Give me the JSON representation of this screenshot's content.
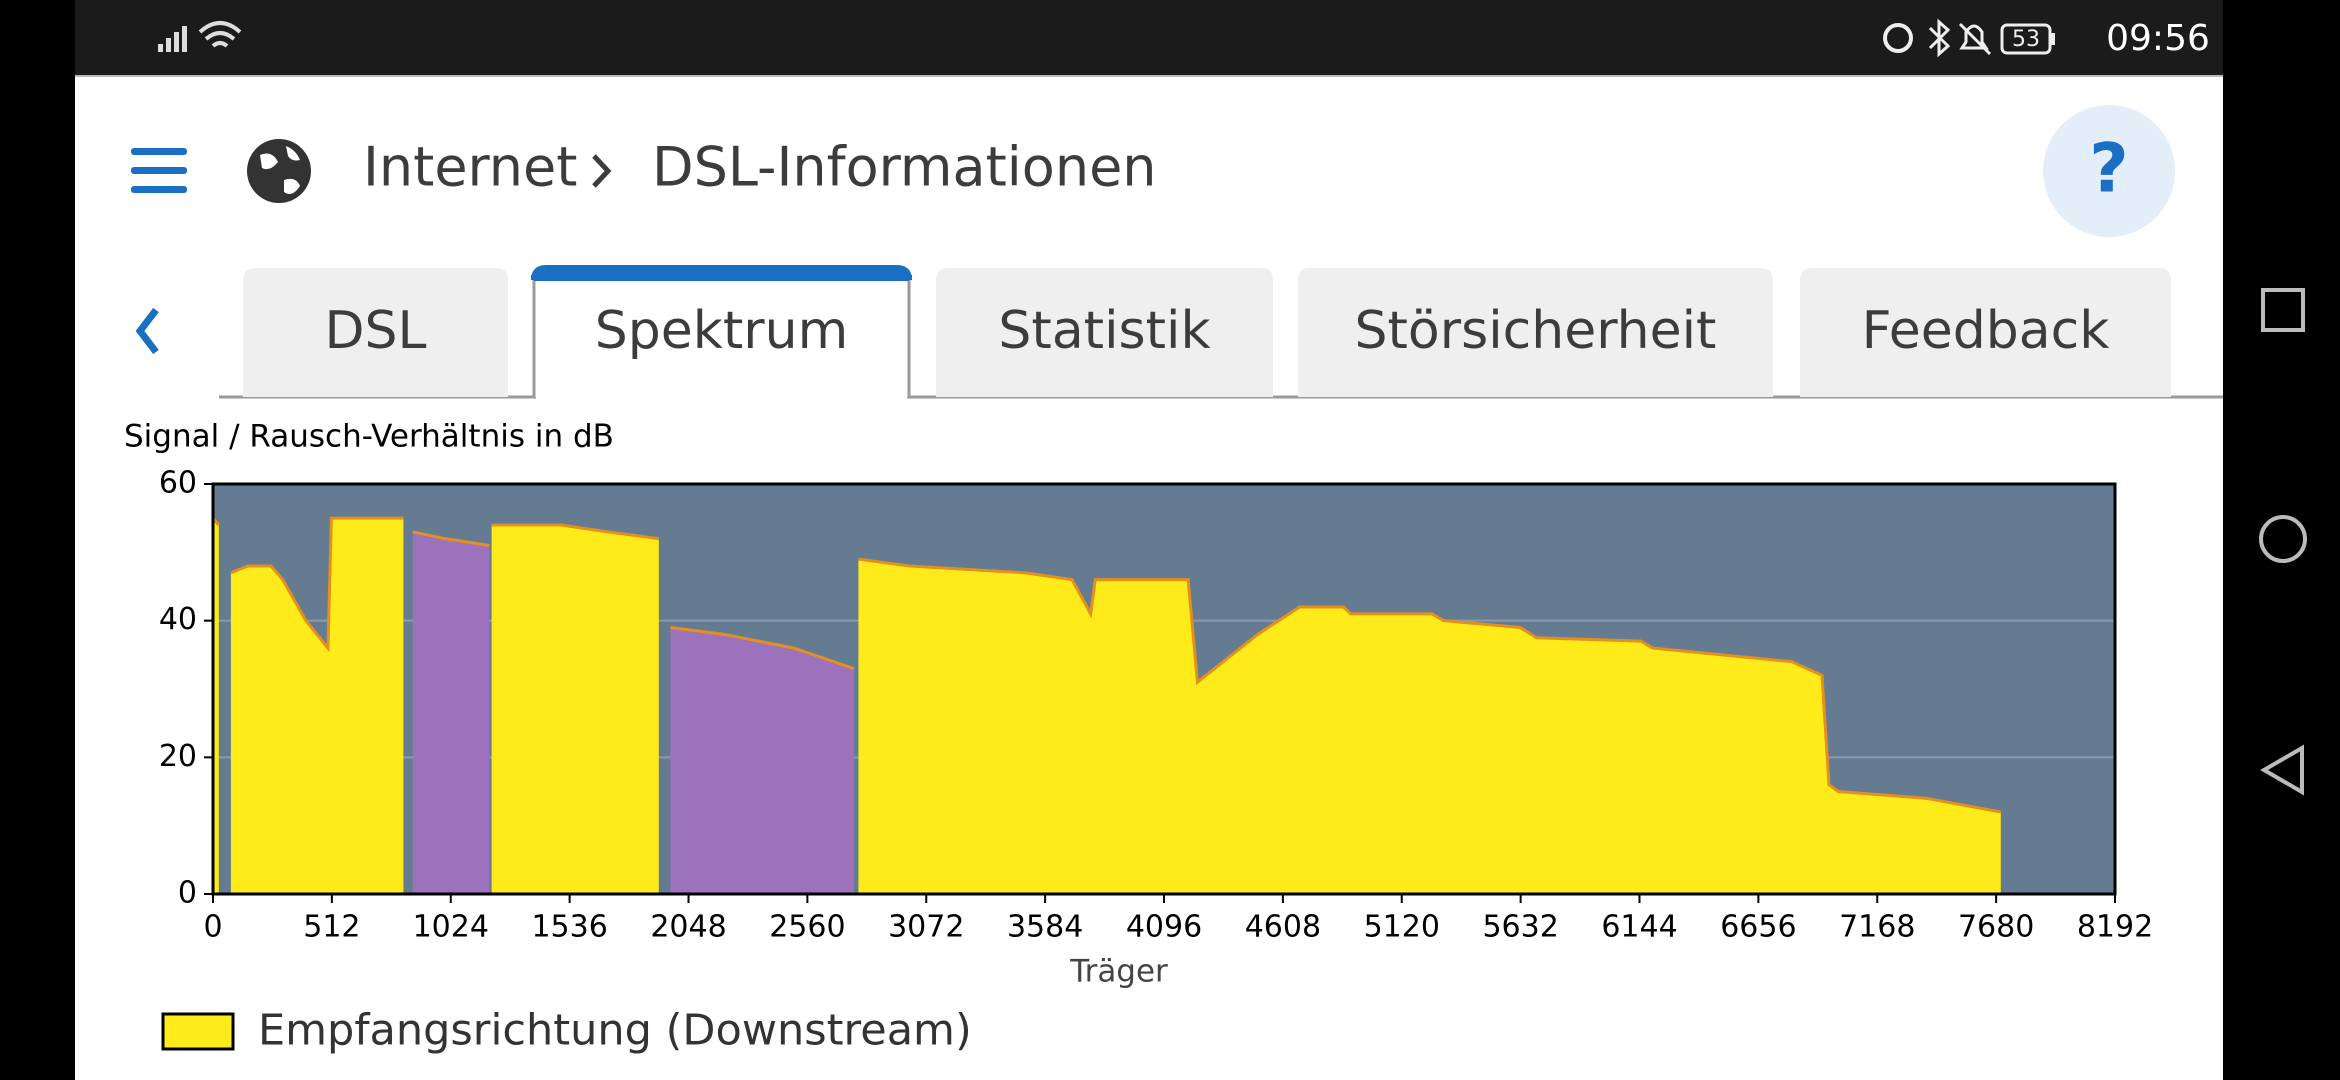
{
  "status_bar": {
    "battery": "53",
    "time": "09:56"
  },
  "header": {
    "breadcrumb": [
      "Internet",
      "DSL-Informationen"
    ],
    "help": "?"
  },
  "tabs": {
    "items": [
      "DSL",
      "Spektrum",
      "Statistik",
      "Störsicherheit",
      "Feedback"
    ],
    "active": 1
  },
  "chart_data": {
    "type": "area",
    "title": "Signal / Rausch-Verhältnis in dB",
    "xlabel": "Träger",
    "xlim": [
      0,
      8192
    ],
    "xticks": [
      0,
      512,
      1024,
      1536,
      2048,
      2560,
      3072,
      3584,
      4096,
      4608,
      5120,
      5632,
      6144,
      6656,
      7168,
      7680,
      8192
    ],
    "ylim": [
      0,
      60
    ],
    "yticks": [
      0,
      20,
      40,
      60
    ],
    "grid": true,
    "background": "#657b91",
    "line_color": "#e3901e",
    "series": [
      {
        "name": "Empfangsrichtung (Downstream)",
        "color": "#ffeb1a",
        "x": [
          0,
          25,
          45,
          77,
          150,
          250,
          300,
          400,
          495,
          510,
          820,
          835,
          1200,
          1500,
          1700,
          1920,
          1940,
          2780,
          3000,
          3500,
          3700,
          3780,
          3800,
          4200,
          4240,
          4500,
          4680,
          4870,
          4900,
          5250,
          5300,
          5630,
          5700,
          6150,
          6200,
          6500,
          6800,
          6930,
          6960,
          7000,
          7380,
          7700,
          7740
        ],
        "values": [
          55,
          54,
          null,
          47,
          48,
          48,
          46,
          40,
          36,
          55,
          55,
          null,
          54,
          54,
          53,
          52,
          null,
          49,
          48,
          47,
          46,
          41,
          46,
          46,
          31,
          38,
          42,
          42,
          41,
          41,
          40,
          39,
          37.5,
          37,
          36,
          35,
          34,
          32,
          16,
          15,
          14,
          12,
          null
        ]
      },
      {
        "color": "#9b72bb",
        "x": [
          860,
          1000,
          1190,
          1200,
          1970,
          2200,
          2500,
          2760
        ],
        "values": [
          53,
          52,
          51,
          null,
          39,
          38,
          36,
          33
        ]
      }
    ]
  }
}
